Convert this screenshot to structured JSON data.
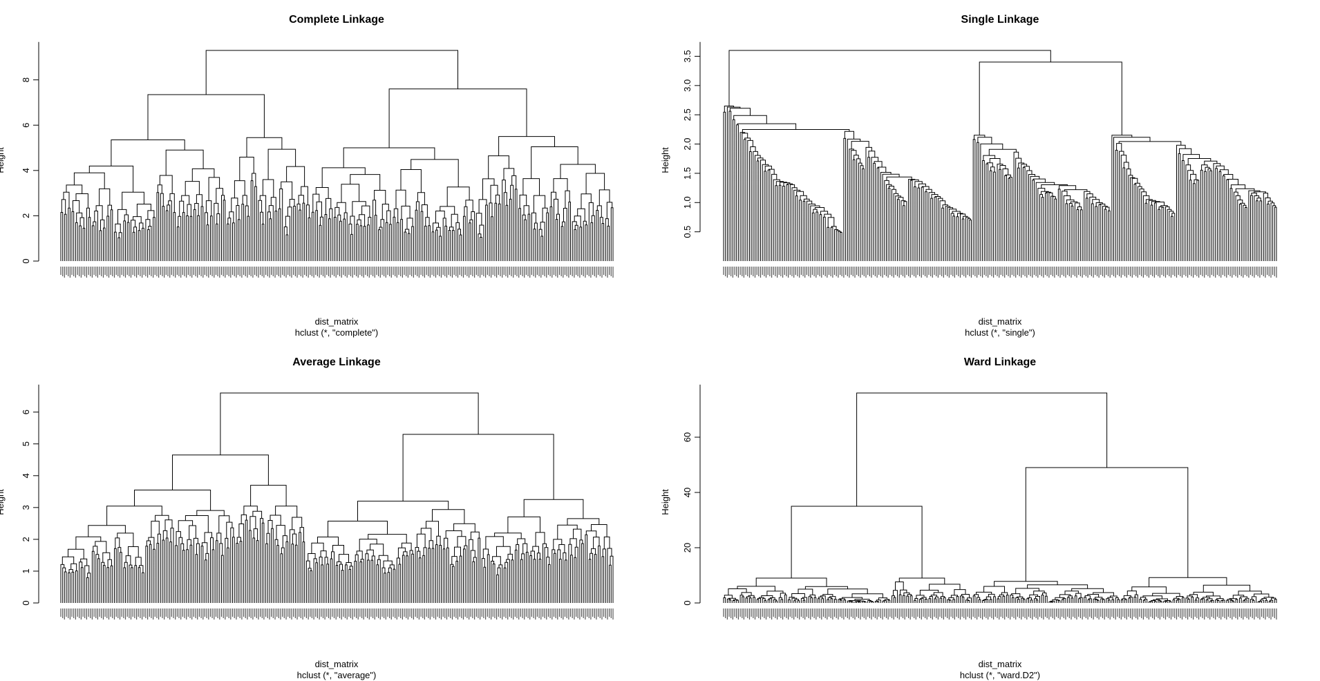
{
  "chart_data": [
    {
      "type": "dendrogram",
      "title": "Complete Linkage",
      "xlabel": "dist_matrix",
      "sub": "hclust (*, \"complete\")",
      "ylabel": "Height",
      "yticks": [
        0,
        2,
        4,
        6,
        8
      ],
      "ylim": [
        0,
        9.3
      ],
      "method": "complete",
      "tree": {
        "h": 9.3,
        "children": [
          {
            "h": 7.35,
            "children": [
              {
                "h": 5.35,
                "n": 90
              },
              {
                "h": 5.45,
                "n": 46
              }
            ]
          },
          {
            "h": 7.6,
            "children": [
              {
                "h": 5.0,
                "n": 89
              },
              {
                "h": 5.5,
                "n": 75
              }
            ]
          }
        ]
      }
    },
    {
      "type": "dendrogram",
      "title": "Single Linkage",
      "xlabel": "dist_matrix",
      "sub": "hclust (*, \"single\")",
      "ylabel": "Height",
      "yticks": [
        0.5,
        1.0,
        1.5,
        2.0,
        2.5,
        3.0,
        3.5
      ],
      "ylim": [
        0,
        3.6
      ],
      "method": "single",
      "tree": {
        "h": 3.6,
        "children": [
          {
            "h": 2.65,
            "n": 135
          },
          {
            "h": 3.4,
            "children": [
              {
                "h": 2.15,
                "n": 75
              },
              {
                "h": 2.15,
                "n": 90
              }
            ]
          }
        ]
      }
    },
    {
      "type": "dendrogram",
      "title": "Average Linkage",
      "xlabel": "dist_matrix",
      "sub": "hclust (*, \"average\")",
      "ylabel": "Height",
      "yticks": [
        0,
        1,
        2,
        3,
        4,
        5,
        6
      ],
      "ylim": [
        0,
        6.6
      ],
      "method": "average",
      "tree": {
        "h": 6.6,
        "children": [
          {
            "h": 4.65,
            "children": [
              {
                "h": 3.55,
                "n": 95
              },
              {
                "h": 3.7,
                "n": 38
              }
            ]
          },
          {
            "h": 5.3,
            "children": [
              {
                "h": 3.2,
                "n": 95
              },
              {
                "h": 3.25,
                "n": 72
              }
            ]
          }
        ]
      }
    },
    {
      "type": "dendrogram",
      "title": "Ward Linkage",
      "xlabel": "dist_matrix",
      "sub": "hclust (*, \"ward.D2\")",
      "ylabel": "Height",
      "yticks": [
        0,
        20,
        40,
        60
      ],
      "ylim": [
        0,
        76
      ],
      "method": "ward.D2",
      "tree": {
        "h": 76,
        "children": [
          {
            "h": 35,
            "children": [
              {
                "h": 9,
                "n": 91
              },
              {
                "h": 9,
                "n": 44
              }
            ]
          },
          {
            "h": 49,
            "children": [
              {
                "h": 7.8,
                "n": 80
              },
              {
                "h": 9.2,
                "n": 85
              }
            ]
          }
        ]
      }
    }
  ]
}
